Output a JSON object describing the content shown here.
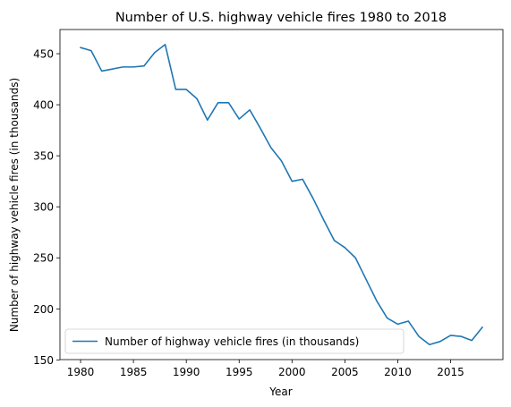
{
  "chart_data": {
    "type": "line",
    "title": "Number of U.S. highway vehicle fires 1980 to 2018",
    "xlabel": "Year",
    "ylabel": "Number of highway vehicle fires (in thousands)",
    "xlim": [
      1978.05,
      2019.95
    ],
    "ylim": [
      150.3,
      473.7
    ],
    "x_ticks": [
      1980,
      1985,
      1990,
      1995,
      2000,
      2005,
      2010,
      2015
    ],
    "y_ticks": [
      150,
      200,
      250,
      300,
      350,
      400,
      450
    ],
    "legend_position": "lower-left",
    "grid": false,
    "series": [
      {
        "name": "Number of highway vehicle fires (in thousands)",
        "color": "#1f77b4",
        "x": [
          1980,
          1981,
          1982,
          1983,
          1984,
          1985,
          1986,
          1987,
          1988,
          1989,
          1990,
          1991,
          1992,
          1993,
          1994,
          1995,
          1996,
          1997,
          1998,
          1999,
          2000,
          2001,
          2002,
          2003,
          2004,
          2005,
          2006,
          2007,
          2008,
          2009,
          2010,
          2011,
          2012,
          2013,
          2014,
          2015,
          2016,
          2017,
          2018
        ],
        "values": [
          456,
          453,
          433,
          435,
          437,
          437,
          438,
          451,
          459,
          415,
          415,
          406,
          385,
          402,
          402,
          386,
          395,
          377,
          358,
          345,
          325,
          327,
          308,
          287,
          267,
          260,
          250,
          229,
          208,
          191,
          185,
          188,
          173,
          165,
          168,
          174,
          173,
          169,
          182
        ]
      }
    ]
  }
}
